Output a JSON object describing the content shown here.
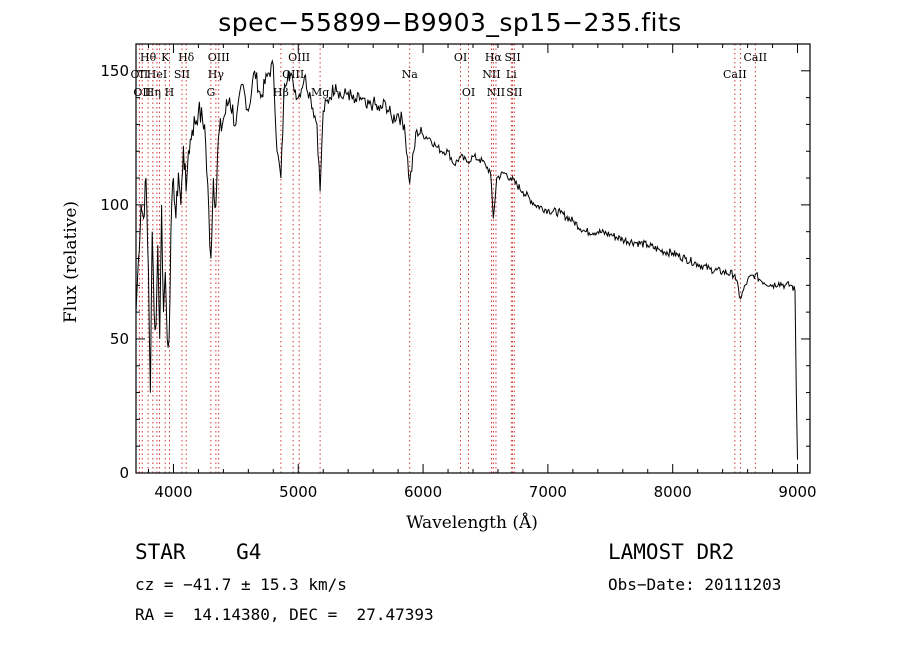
{
  "chart_data": {
    "type": "line",
    "title": "spec−55899−B9903_sp15−235.fits",
    "xlabel": "Wavelength (Å)",
    "ylabel": "Flux (relative)",
    "xlim": [
      3700,
      9100
    ],
    "ylim": [
      0,
      160
    ],
    "xticks": [
      4000,
      5000,
      6000,
      7000,
      8000,
      9000
    ],
    "yticks": [
      0,
      50,
      100,
      150
    ],
    "grid": false,
    "series": [
      {
        "name": "spectrum",
        "x": [
          3700,
          3720,
          3740,
          3760,
          3780,
          3800,
          3815,
          3830,
          3845,
          3860,
          3875,
          3890,
          3905,
          3920,
          3935,
          3950,
          3965,
          3980,
          4000,
          4020,
          4040,
          4060,
          4080,
          4101,
          4120,
          4150,
          4200,
          4250,
          4300,
          4320,
          4340,
          4360,
          4400,
          4450,
          4500,
          4550,
          4600,
          4650,
          4700,
          4750,
          4800,
          4830,
          4861,
          4890,
          4920,
          4960,
          5000,
          5050,
          5100,
          5150,
          5175,
          5200,
          5250,
          5300,
          5350,
          5400,
          5450,
          5500,
          5550,
          5600,
          5650,
          5700,
          5750,
          5800,
          5850,
          5893,
          5950,
          6000,
          6050,
          6100,
          6150,
          6200,
          6250,
          6300,
          6350,
          6400,
          6450,
          6500,
          6540,
          6563,
          6590,
          6650,
          6700,
          6800,
          6900,
          7000,
          7100,
          7200,
          7300,
          7400,
          7500,
          7600,
          7700,
          7800,
          7900,
          8000,
          8100,
          8200,
          8300,
          8400,
          8498,
          8542,
          8600,
          8662,
          8700,
          8800,
          8850,
          8900,
          8950,
          8980,
          8990,
          9000
        ],
        "y": [
          60,
          80,
          100,
          95,
          110,
          75,
          30,
          90,
          60,
          55,
          85,
          50,
          100,
          60,
          75,
          50,
          50,
          90,
          110,
          95,
          112,
          100,
          122,
          105,
          120,
          128,
          135,
          130,
          80,
          110,
          100,
          125,
          132,
          140,
          130,
          145,
          135,
          150,
          140,
          148,
          152,
          120,
          110,
          145,
          150,
          145,
          140,
          148,
          140,
          130,
          105,
          135,
          140,
          145,
          140,
          142,
          138,
          140,
          136,
          138,
          135,
          138,
          132,
          134,
          130,
          108,
          128,
          126,
          125,
          122,
          120,
          120,
          115,
          118,
          116,
          118,
          117,
          115,
          112,
          95,
          110,
          112,
          110,
          105,
          100,
          98,
          97,
          94,
          90,
          90,
          89,
          87,
          86,
          85,
          83,
          82,
          80,
          78,
          76,
          75,
          74,
          65,
          72,
          74,
          72,
          70,
          71,
          70,
          70,
          68,
          30,
          5
        ]
      }
    ],
    "lines": [
      {
        "wave": 3727,
        "label": "OII",
        "row": 1
      },
      {
        "wave": 3750,
        "label": "OII",
        "row": 2
      },
      {
        "wave": 3797,
        "label": "Hθ",
        "row": 0
      },
      {
        "wave": 3835,
        "label": "Hη",
        "row": 2
      },
      {
        "wave": 3868,
        "label": "HeI",
        "row": 1
      },
      {
        "wave": 3889,
        "label": "",
        "row": 0
      },
      {
        "wave": 3934,
        "label": "K",
        "row": 0
      },
      {
        "wave": 3968,
        "label": "H",
        "row": 2
      },
      {
        "wave": 4068,
        "label": "SII",
        "row": 1
      },
      {
        "wave": 4102,
        "label": "Hδ",
        "row": 0
      },
      {
        "wave": 4300,
        "label": "G",
        "row": 2
      },
      {
        "wave": 4340,
        "label": "Hγ",
        "row": 1
      },
      {
        "wave": 4363,
        "label": "OIII",
        "row": 0
      },
      {
        "wave": 4861,
        "label": "Hβ",
        "row": 2
      },
      {
        "wave": 4959,
        "label": "OIII",
        "row": 1
      },
      {
        "wave": 5007,
        "label": "OIII",
        "row": 0
      },
      {
        "wave": 5175,
        "label": "Mg",
        "row": 2
      },
      {
        "wave": 5893,
        "label": "Na",
        "row": 1
      },
      {
        "wave": 6300,
        "label": "OI",
        "row": 0
      },
      {
        "wave": 6364,
        "label": "OI",
        "row": 2
      },
      {
        "wave": 6548,
        "label": "NII",
        "row": 1
      },
      {
        "wave": 6563,
        "label": "Hα",
        "row": 0
      },
      {
        "wave": 6584,
        "label": "NII",
        "row": 2
      },
      {
        "wave": 6707,
        "label": "Li",
        "row": 1
      },
      {
        "wave": 6717,
        "label": "SII",
        "row": 0
      },
      {
        "wave": 6731,
        "label": "SII",
        "row": 2
      },
      {
        "wave": 8498,
        "label": "CaII",
        "row": 1
      },
      {
        "wave": 8542,
        "label": "",
        "row": 0
      },
      {
        "wave": 8662,
        "label": "CaII",
        "row": 0
      }
    ]
  },
  "info": {
    "object_class": "STAR",
    "subclass": "G4",
    "survey": "LAMOST DR2",
    "cz": "cz = −41.7 ± 15.3 km/s",
    "obs_date": "Obs−Date: 20111203",
    "radec": "RA =  14.14380, DEC =  27.47393"
  }
}
